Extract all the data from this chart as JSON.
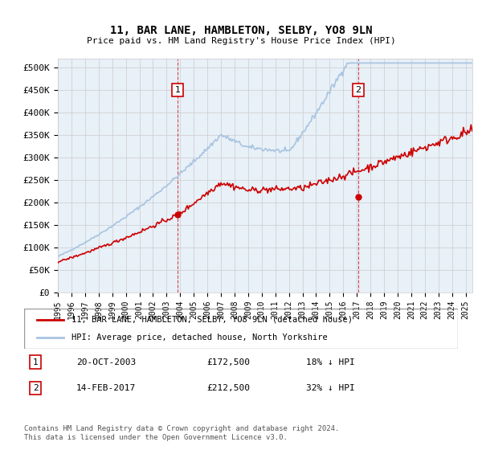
{
  "title": "11, BAR LANE, HAMBLETON, SELBY, YO8 9LN",
  "subtitle": "Price paid vs. HM Land Registry's House Price Index (HPI)",
  "ylabel_ticks": [
    "£0",
    "£50K",
    "£100K",
    "£150K",
    "£200K",
    "£250K",
    "£300K",
    "£350K",
    "£400K",
    "£450K",
    "£500K"
  ],
  "ytick_values": [
    0,
    50000,
    100000,
    150000,
    200000,
    250000,
    300000,
    350000,
    400000,
    450000,
    500000
  ],
  "ylim": [
    0,
    520000
  ],
  "xlim_start": 1995.0,
  "xlim_end": 2025.5,
  "hpi_color": "#a8c4e0",
  "price_color": "#cc0000",
  "marker1_x": 2003.8,
  "marker1_y": 172500,
  "marker2_x": 2017.1,
  "marker2_y": 212500,
  "legend_line1": "11, BAR LANE, HAMBLETON, SELBY, YO8 9LN (detached house)",
  "legend_line2": "HPI: Average price, detached house, North Yorkshire",
  "table_row1_num": "1",
  "table_row1_date": "20-OCT-2003",
  "table_row1_price": "£172,500",
  "table_row1_hpi": "18% ↓ HPI",
  "table_row2_num": "2",
  "table_row2_date": "14-FEB-2017",
  "table_row2_price": "£212,500",
  "table_row2_hpi": "32% ↓ HPI",
  "footer": "Contains HM Land Registry data © Crown copyright and database right 2024.\nThis data is licensed under the Open Government Licence v3.0.",
  "bg_color": "#e8f0f8",
  "plot_bg": "#ffffff"
}
